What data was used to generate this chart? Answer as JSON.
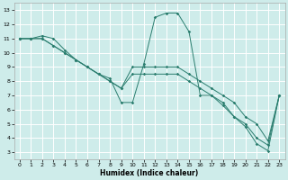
{
  "xlabel": "Humidex (Indice chaleur)",
  "xlim": [
    -0.5,
    23.5
  ],
  "ylim": [
    2.5,
    13.5
  ],
  "xticks": [
    0,
    1,
    2,
    3,
    4,
    5,
    6,
    7,
    8,
    9,
    10,
    11,
    12,
    13,
    14,
    15,
    16,
    17,
    18,
    19,
    20,
    21,
    22,
    23
  ],
  "yticks": [
    3,
    4,
    5,
    6,
    7,
    8,
    9,
    10,
    11,
    12,
    13
  ],
  "line_color": "#2a7d6e",
  "bg_color": "#ceecea",
  "grid_color": "#ffffff",
  "line1": {
    "x": [
      0,
      1,
      2,
      3,
      4,
      5,
      6,
      7,
      8,
      9,
      10,
      11,
      12,
      13,
      14,
      15,
      16,
      17,
      18,
      19,
      20,
      21,
      22,
      23
    ],
    "y": [
      11,
      11,
      11,
      10.5,
      10,
      9.5,
      9,
      8.5,
      8.0,
      7.5,
      9.0,
      9.0,
      9.0,
      9.0,
      9.0,
      8.5,
      8.0,
      7.5,
      7.0,
      6.5,
      5.5,
      5.0,
      3.8,
      7.0
    ]
  },
  "line2": {
    "x": [
      0,
      1,
      2,
      3,
      4,
      5,
      6,
      7,
      8,
      9,
      10,
      11,
      12,
      13,
      14,
      15,
      16,
      17,
      18,
      19,
      20,
      21,
      22,
      23
    ],
    "y": [
      11,
      11,
      11.2,
      11,
      10.2,
      9.5,
      9.0,
      8.5,
      8.2,
      6.5,
      6.5,
      9.2,
      12.5,
      12.8,
      12.8,
      11.5,
      7.0,
      7.0,
      6.3,
      5.5,
      4.8,
      3.6,
      3.1,
      7.0
    ]
  },
  "line3": {
    "x": [
      0,
      1,
      2,
      3,
      4,
      5,
      6,
      7,
      8,
      9,
      10,
      11,
      12,
      13,
      14,
      15,
      16,
      17,
      18,
      19,
      20,
      21,
      22,
      23
    ],
    "y": [
      11,
      11,
      11,
      10.5,
      10.0,
      9.5,
      9.0,
      8.5,
      8.0,
      7.5,
      8.5,
      8.5,
      8.5,
      8.5,
      8.5,
      8.0,
      7.5,
      7.0,
      6.5,
      5.5,
      5.0,
      4.0,
      3.5,
      7.0
    ]
  }
}
